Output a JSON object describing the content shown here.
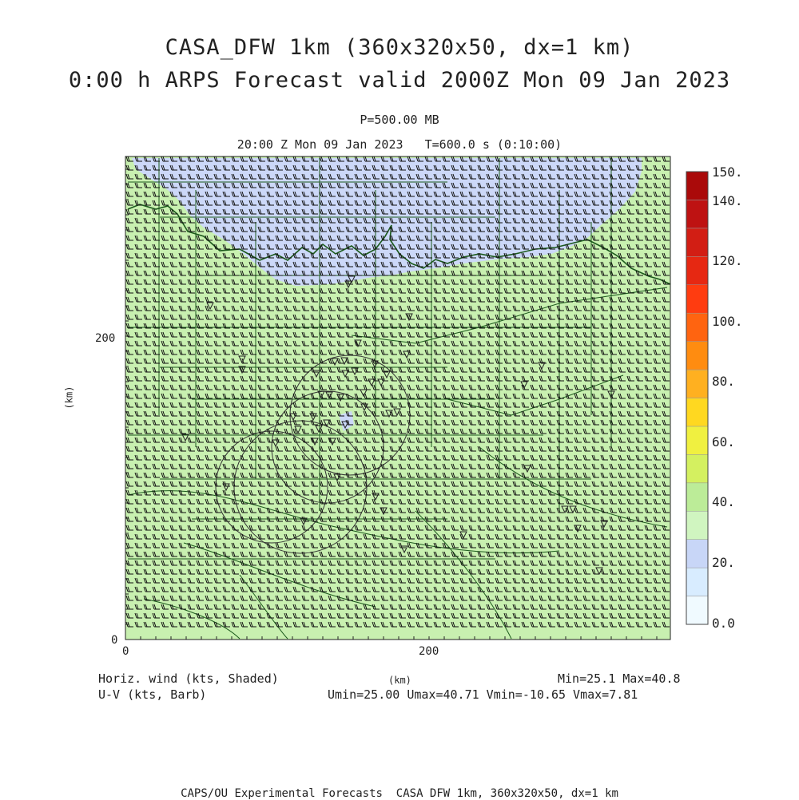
{
  "header": {
    "title_line1": "CASA_DFW 1km (360x320x50, dx=1 km)",
    "title_line2": "0:00 h ARPS Forecast valid 2000Z Mon 09 Jan 2023",
    "level": "P=500.00 MB",
    "time": "20:00 Z Mon 09 Jan 2023   T=600.0 s (0:10:00)"
  },
  "axes": {
    "x_unit": "(km)",
    "y_unit": "(km)",
    "x_ticks": [
      "0",
      "200"
    ],
    "y_ticks": [
      "0",
      "200"
    ]
  },
  "legend": {
    "labels": [
      "150.",
      "140.",
      "120.",
      "100.",
      "80.",
      "60.",
      "40.",
      "20.",
      "0.0"
    ],
    "colors": [
      "#f0faff",
      "#d8ecff",
      "#c8d6f7",
      "#d0f5c0",
      "#bcec98",
      "#d4f060",
      "#f0f040",
      "#ffd820",
      "#ffb020",
      "#ff8c10",
      "#ff6410",
      "#ff3c10",
      "#e62812",
      "#d21e14",
      "#be1212",
      "#aa0a0a"
    ]
  },
  "annotations": {
    "left_line1": "Horiz. wind (kts, Shaded)",
    "left_line2": "U-V (kts, Barb)",
    "right_line1": "Min=25.1 Max=40.8",
    "right_line2": "Umin=25.00 Umax=40.71 Vmin=-10.65 Vmax=7.81"
  },
  "footer": "CAPS/OU Experimental Forecasts  CASA DFW 1km, 360x320x50, dx=1 km",
  "colors": {
    "field_green": "#c8f0b0",
    "field_blue": "#ccd8f8",
    "boundary": "#1c5a1c",
    "barb": "#111111"
  },
  "wind_range_kts": {
    "min": 25.1,
    "max": 40.8
  }
}
